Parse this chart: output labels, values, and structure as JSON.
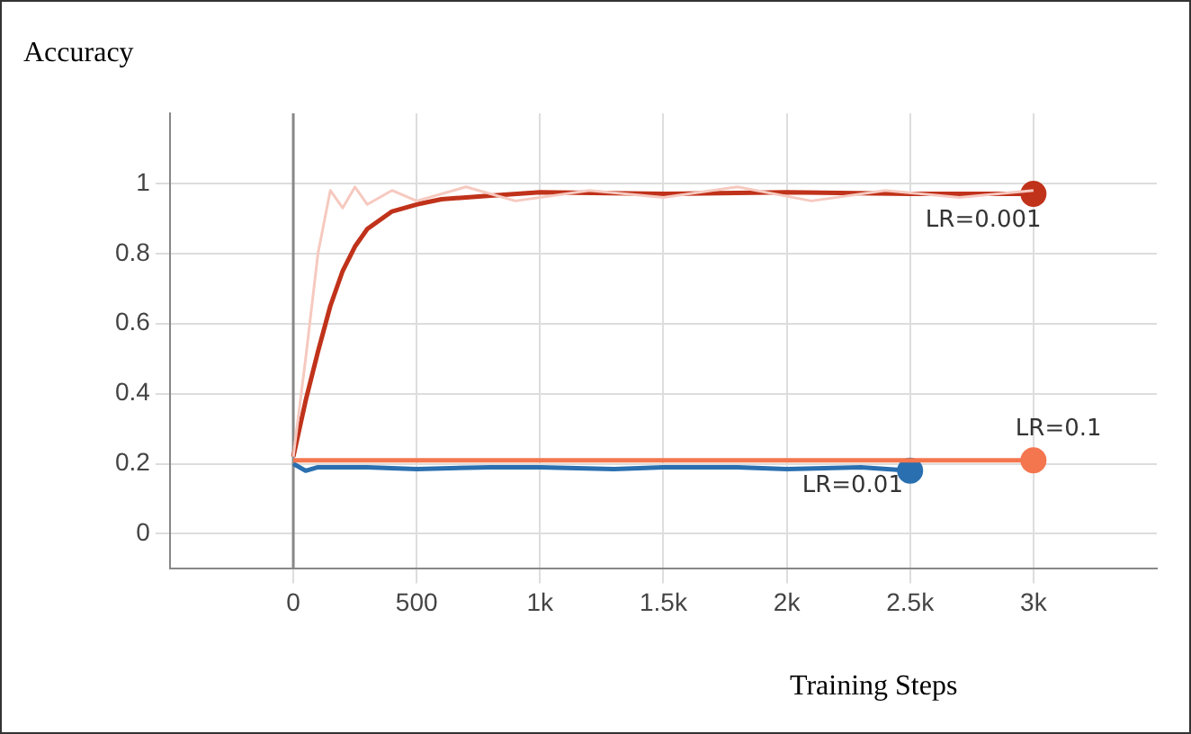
{
  "chart_data": {
    "type": "line",
    "title": "Accuracy",
    "xlabel": "Training Steps",
    "xlim": [
      -500,
      3500
    ],
    "xticks": [
      0,
      500,
      {
        "value": 1000,
        "label": "1k"
      },
      {
        "value": 1500,
        "label": "1.5k"
      },
      {
        "value": 2000,
        "label": "2k"
      },
      {
        "value": 2500,
        "label": "2.5k"
      },
      {
        "value": 3000,
        "label": "3k"
      }
    ],
    "ylim": [
      -0.1,
      1.2
    ],
    "yticks": [
      0,
      0.2,
      0.4,
      0.6,
      0.8,
      1
    ],
    "grid": true,
    "series": [
      {
        "color": "#f6c9bf",
        "x": [
          0,
          50,
          100,
          150,
          200,
          250,
          300,
          400,
          500,
          700,
          900,
          1200,
          1500,
          1800,
          2100,
          2400,
          2700,
          3000
        ],
        "values": [
          0.22,
          0.5,
          0.8,
          0.98,
          0.93,
          0.99,
          0.94,
          0.98,
          0.95,
          0.99,
          0.95,
          0.98,
          0.96,
          0.99,
          0.95,
          0.98,
          0.96,
          0.98
        ]
      },
      {
        "name": "LR=0.001",
        "color": "#c0321a",
        "x": [
          0,
          50,
          100,
          150,
          200,
          250,
          300,
          400,
          500,
          600,
          800,
          1000,
          1500,
          2000,
          2500,
          3000
        ],
        "values": [
          0.22,
          0.38,
          0.52,
          0.65,
          0.75,
          0.82,
          0.87,
          0.92,
          0.94,
          0.955,
          0.965,
          0.975,
          0.97,
          0.975,
          0.97,
          0.97
        ]
      },
      {
        "name": "LR=0.1",
        "color": "#f4764f",
        "x": [
          0,
          500,
          1000,
          1500,
          2000,
          2500,
          3000
        ],
        "values": [
          0.21,
          0.21,
          0.21,
          0.21,
          0.21,
          0.21,
          0.21
        ]
      },
      {
        "name": "LR=0.01",
        "color": "#2a6fb0",
        "x": [
          0,
          50,
          100,
          300,
          500,
          800,
          1000,
          1300,
          1500,
          1800,
          2000,
          2300,
          2500
        ],
        "values": [
          0.2,
          0.18,
          0.19,
          0.19,
          0.185,
          0.19,
          0.19,
          0.185,
          0.19,
          0.19,
          0.185,
          0.19,
          0.18
        ]
      }
    ]
  }
}
